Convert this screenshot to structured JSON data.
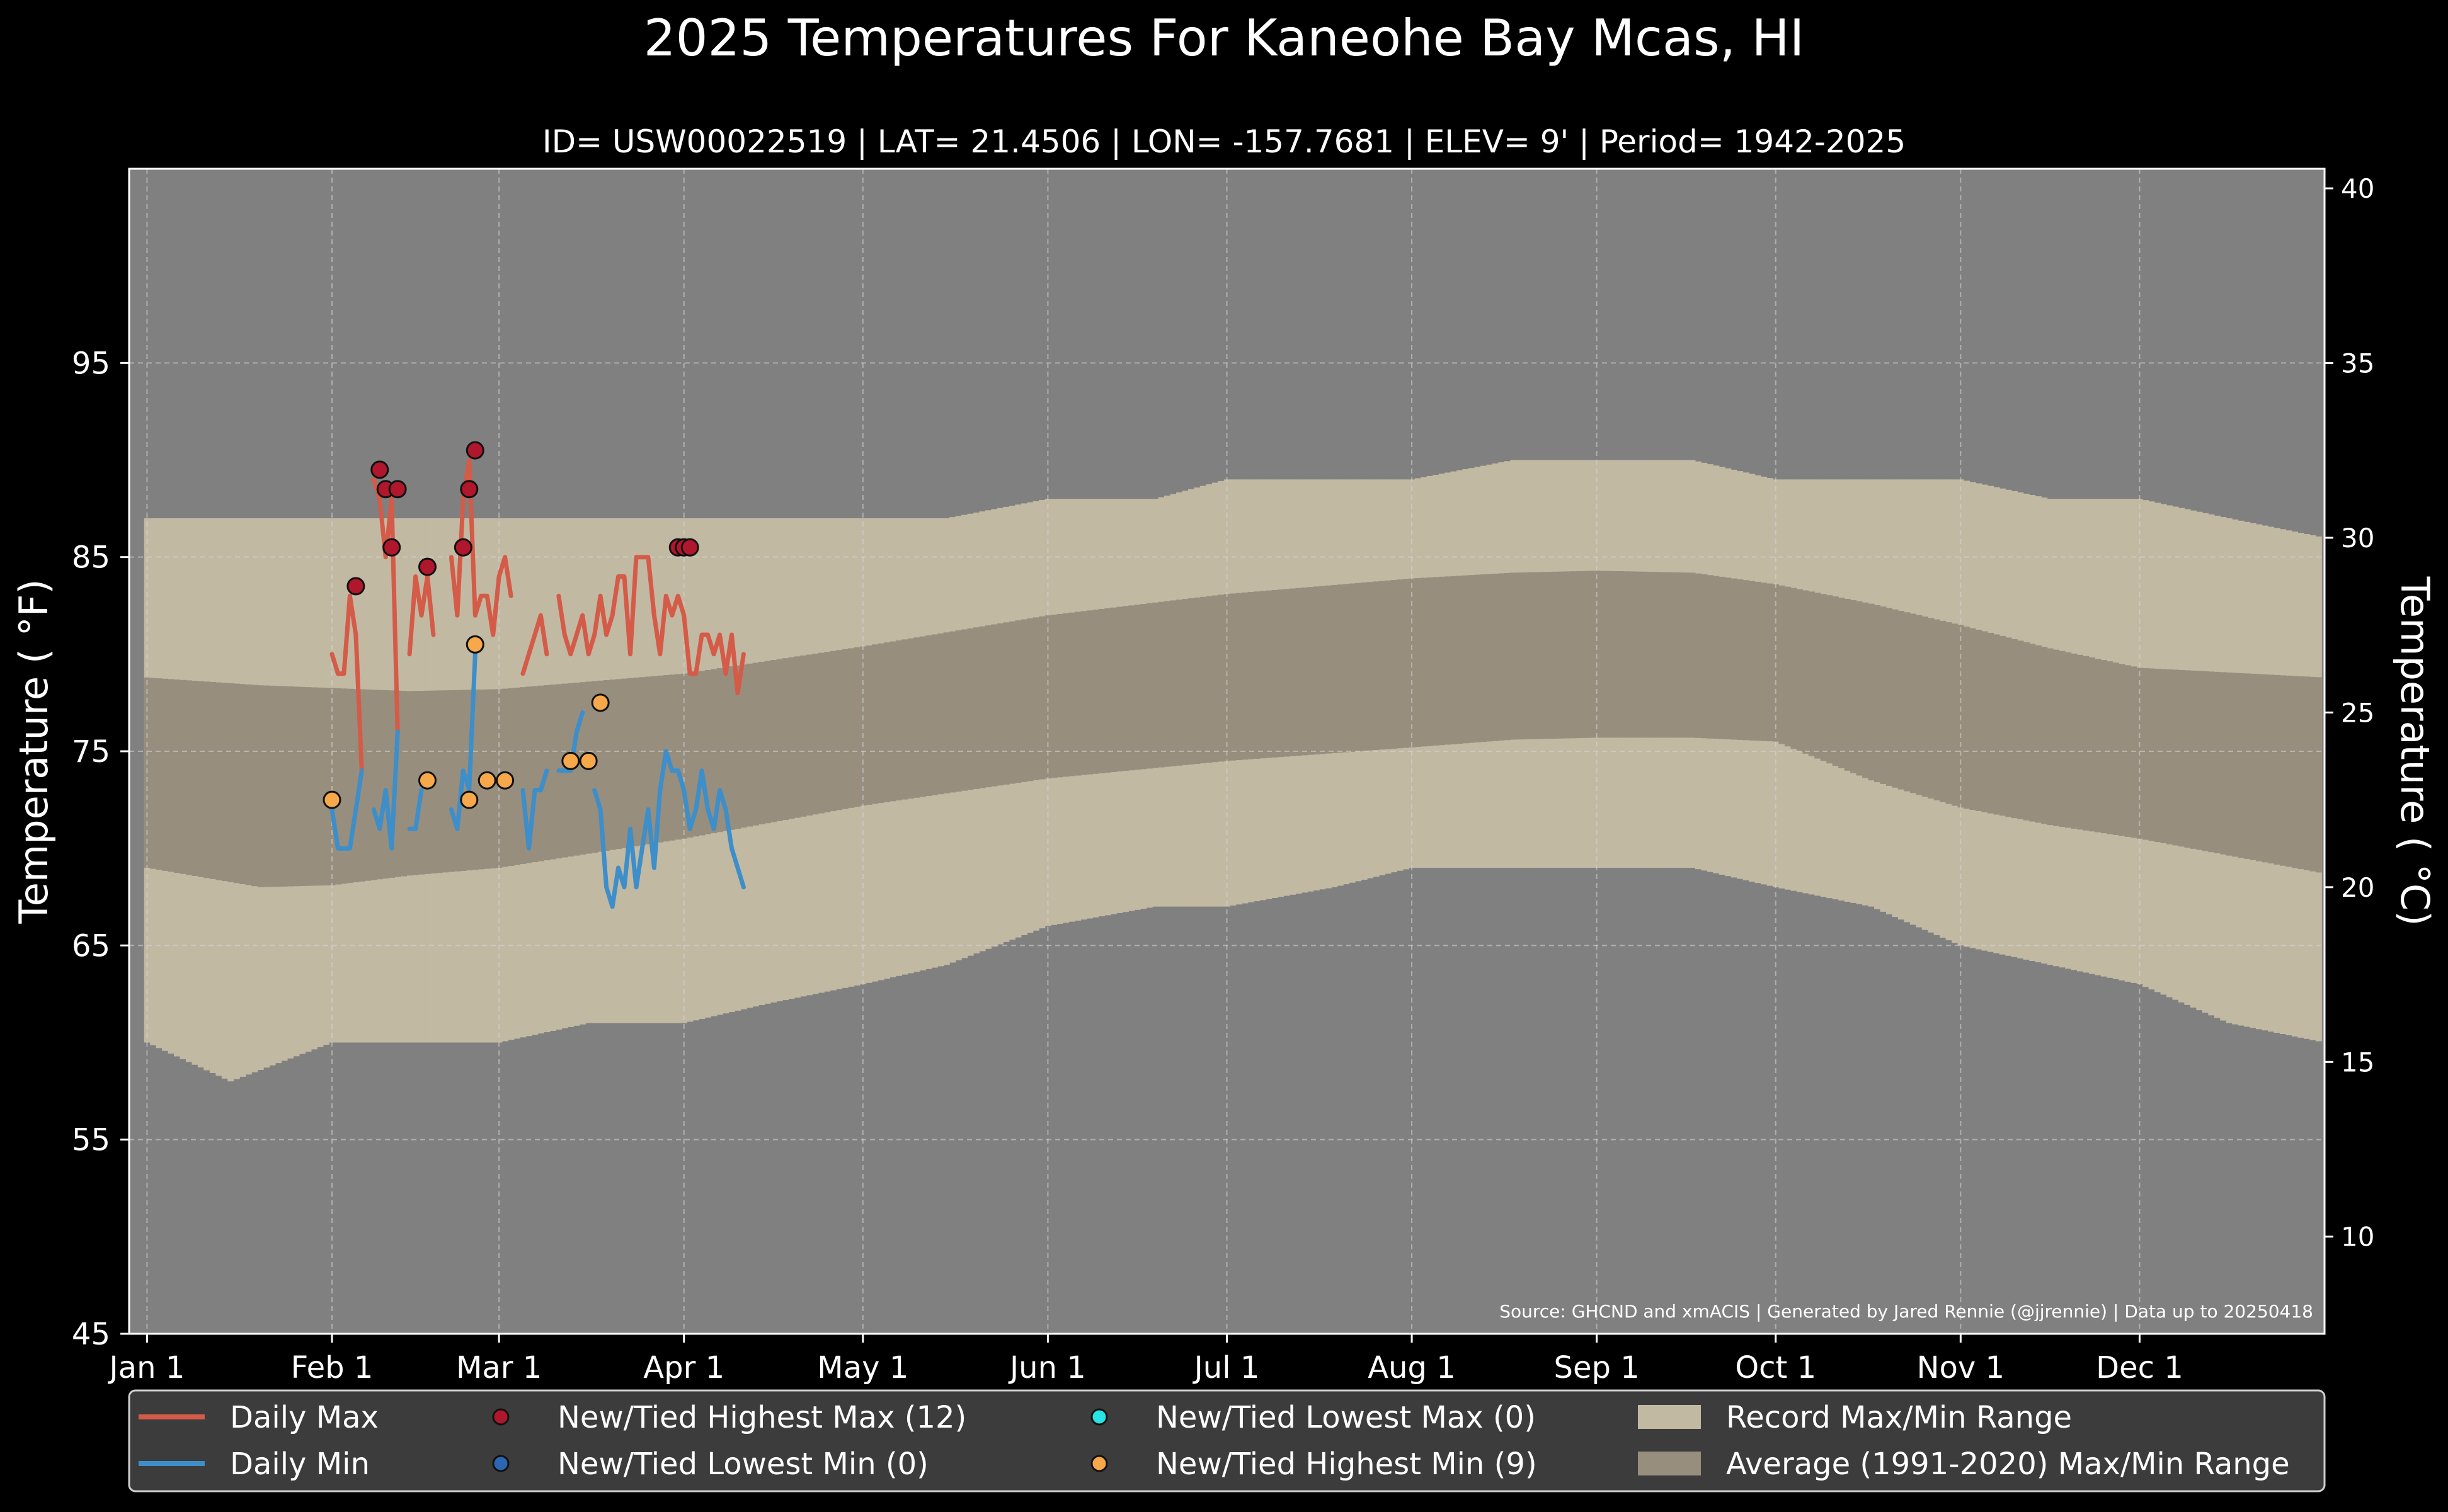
{
  "chart_data": {
    "type": "line",
    "title": "2025 Temperatures For Kaneohe Bay Mcas, HI",
    "subtitle": "ID= USW00022519 | LAT= 21.4506 | LON= -157.7681 | ELEV= 9' | Period= 1942-2025",
    "ylabel_left": "Temperature ($^\\circ$F)",
    "ylabel_right": "Temperature ($^\\circ$C)",
    "ylabel_left_display": "Temperature ( °F)",
    "ylabel_right_display": "Temperature ( °C)",
    "ylim_f": [
      45,
      105
    ],
    "ylim_c": [
      7.22,
      40.56
    ],
    "xlim_day": [
      -2,
      366
    ],
    "x_ticks": [
      {
        "label": "Jan 1",
        "day": 1
      },
      {
        "label": "Feb 1",
        "day": 32
      },
      {
        "label": "Mar 1",
        "day": 60
      },
      {
        "label": "Apr 1",
        "day": 91
      },
      {
        "label": "May 1",
        "day": 121
      },
      {
        "label": "Jun 1",
        "day": 152
      },
      {
        "label": "Jul 1",
        "day": 182
      },
      {
        "label": "Aug 1",
        "day": 213
      },
      {
        "label": "Sep 1",
        "day": 244
      },
      {
        "label": "Oct 1",
        "day": 274
      },
      {
        "label": "Nov 1",
        "day": 305
      },
      {
        "label": "Dec 1",
        "day": 335
      }
    ],
    "y_ticks_left": [
      45,
      55,
      65,
      75,
      85,
      95
    ],
    "y_ticks_right": [
      10,
      15,
      20,
      25,
      30,
      35,
      40
    ],
    "grid": true,
    "source_note": "Source: GHCND and xmACIS | Generated by Jared Rennie (@jjrennie) | Data up to 20250418",
    "colors": {
      "background": "#000000",
      "plot_background": "#808080",
      "record_range": "#c2b9a3",
      "average_range": "#978e7e",
      "daily_max": "#d45b48",
      "daily_min": "#3d8ec9",
      "highest_max_marker": "#b0172c",
      "lowest_min_marker": "#2b66b4",
      "lowest_max_marker": "#27e3e3",
      "highest_min_marker": "#f7a84a",
      "legend_background": "#3c3c3c"
    },
    "record_max_anchors": [
      [
        1,
        87
      ],
      [
        15,
        87
      ],
      [
        32,
        87
      ],
      [
        45,
        87
      ],
      [
        60,
        87
      ],
      [
        75,
        87
      ],
      [
        91,
        87
      ],
      [
        105,
        87
      ],
      [
        121,
        87
      ],
      [
        135,
        87
      ],
      [
        152,
        88
      ],
      [
        170,
        88
      ],
      [
        182,
        89
      ],
      [
        200,
        89
      ],
      [
        213,
        89
      ],
      [
        230,
        90
      ],
      [
        244,
        90
      ],
      [
        260,
        90
      ],
      [
        274,
        89
      ],
      [
        290,
        89
      ],
      [
        305,
        89
      ],
      [
        320,
        88
      ],
      [
        335,
        88
      ],
      [
        350,
        87
      ],
      [
        366,
        86
      ]
    ],
    "record_min_anchors": [
      [
        1,
        60
      ],
      [
        15,
        58
      ],
      [
        32,
        60
      ],
      [
        45,
        60
      ],
      [
        60,
        60
      ],
      [
        75,
        61
      ],
      [
        91,
        61
      ],
      [
        105,
        62
      ],
      [
        121,
        63
      ],
      [
        135,
        64
      ],
      [
        152,
        66
      ],
      [
        170,
        67
      ],
      [
        182,
        67
      ],
      [
        200,
        68
      ],
      [
        213,
        69
      ],
      [
        230,
        69
      ],
      [
        244,
        69
      ],
      [
        260,
        69
      ],
      [
        274,
        68
      ],
      [
        290,
        67
      ],
      [
        305,
        65
      ],
      [
        320,
        64
      ],
      [
        335,
        63
      ],
      [
        350,
        61
      ],
      [
        366,
        60
      ]
    ],
    "average_max_anchors": [
      [
        1,
        78.8
      ],
      [
        20,
        78.4
      ],
      [
        45,
        78.1
      ],
      [
        60,
        78.2
      ],
      [
        91,
        79.0
      ],
      [
        121,
        80.4
      ],
      [
        152,
        82.0
      ],
      [
        182,
        83.1
      ],
      [
        213,
        83.9
      ],
      [
        230,
        84.2
      ],
      [
        244,
        84.3
      ],
      [
        260,
        84.2
      ],
      [
        274,
        83.6
      ],
      [
        290,
        82.6
      ],
      [
        305,
        81.5
      ],
      [
        320,
        80.3
      ],
      [
        335,
        79.3
      ],
      [
        366,
        78.8
      ]
    ],
    "average_min_anchors": [
      [
        1,
        69.0
      ],
      [
        20,
        68.0
      ],
      [
        32,
        68.1
      ],
      [
        45,
        68.6
      ],
      [
        60,
        69.0
      ],
      [
        91,
        70.5
      ],
      [
        121,
        72.2
      ],
      [
        152,
        73.6
      ],
      [
        182,
        74.5
      ],
      [
        213,
        75.2
      ],
      [
        230,
        75.6
      ],
      [
        244,
        75.7
      ],
      [
        260,
        75.7
      ],
      [
        274,
        75.5
      ],
      [
        290,
        73.5
      ],
      [
        305,
        72.1
      ],
      [
        320,
        71.2
      ],
      [
        335,
        70.5
      ],
      [
        366,
        68.7
      ]
    ],
    "series": [
      {
        "name": "Daily Max",
        "color": "#d45b48",
        "points": [
          [
            32,
            80
          ],
          [
            33,
            79
          ],
          [
            34,
            79
          ],
          [
            35,
            83
          ],
          [
            36,
            81
          ],
          [
            37,
            74
          ],
          [
            38,
            null
          ],
          [
            39,
            89
          ],
          [
            40,
            88
          ],
          [
            41,
            85
          ],
          [
            42,
            88
          ],
          [
            43,
            76
          ],
          [
            44,
            null
          ],
          [
            45,
            80
          ],
          [
            46,
            84
          ],
          [
            47,
            82
          ],
          [
            48,
            84
          ],
          [
            49,
            81
          ],
          [
            50,
            null
          ],
          [
            51,
            null
          ],
          [
            52,
            85
          ],
          [
            53,
            82
          ],
          [
            54,
            88
          ],
          [
            55,
            90
          ],
          [
            56,
            82
          ],
          [
            57,
            83
          ],
          [
            58,
            83
          ],
          [
            59,
            81
          ],
          [
            60,
            84
          ],
          [
            61,
            85
          ],
          [
            62,
            83
          ],
          [
            63,
            null
          ],
          [
            64,
            79
          ],
          [
            65,
            80
          ],
          [
            66,
            81
          ],
          [
            67,
            82
          ],
          [
            68,
            80
          ],
          [
            69,
            null
          ],
          [
            70,
            83
          ],
          [
            71,
            81
          ],
          [
            72,
            80
          ],
          [
            73,
            81
          ],
          [
            74,
            82
          ],
          [
            75,
            80
          ],
          [
            76,
            81
          ],
          [
            77,
            83
          ],
          [
            78,
            81
          ],
          [
            79,
            82
          ],
          [
            80,
            84
          ],
          [
            81,
            84
          ],
          [
            82,
            80
          ],
          [
            83,
            85
          ],
          [
            84,
            85
          ],
          [
            85,
            85
          ],
          [
            86,
            82
          ],
          [
            87,
            80
          ],
          [
            88,
            83
          ],
          [
            89,
            82
          ],
          [
            90,
            83
          ],
          [
            91,
            82
          ],
          [
            92,
            79
          ],
          [
            93,
            79
          ],
          [
            94,
            81
          ],
          [
            95,
            81
          ],
          [
            96,
            80
          ],
          [
            97,
            81
          ],
          [
            98,
            79
          ],
          [
            99,
            81
          ],
          [
            100,
            78
          ],
          [
            101,
            80
          ]
        ]
      },
      {
        "name": "Daily Min",
        "color": "#3d8ec9",
        "points": [
          [
            32,
            72
          ],
          [
            33,
            70
          ],
          [
            34,
            70
          ],
          [
            35,
            70
          ],
          [
            36,
            72
          ],
          [
            37,
            74
          ],
          [
            38,
            null
          ],
          [
            39,
            72
          ],
          [
            40,
            71
          ],
          [
            41,
            73
          ],
          [
            42,
            70
          ],
          [
            43,
            76
          ],
          [
            44,
            null
          ],
          [
            45,
            71
          ],
          [
            46,
            71
          ],
          [
            47,
            73
          ],
          [
            48,
            null
          ],
          [
            49,
            null
          ],
          [
            50,
            null
          ],
          [
            51,
            null
          ],
          [
            52,
            72
          ],
          [
            53,
            71
          ],
          [
            54,
            74
          ],
          [
            55,
            73
          ],
          [
            56,
            80
          ],
          [
            57,
            null
          ],
          [
            58,
            null
          ],
          [
            59,
            null
          ],
          [
            60,
            null
          ],
          [
            61,
            null
          ],
          [
            62,
            null
          ],
          [
            63,
            null
          ],
          [
            64,
            73
          ],
          [
            65,
            70
          ],
          [
            66,
            73
          ],
          [
            67,
            73
          ],
          [
            68,
            74
          ],
          [
            69,
            null
          ],
          [
            70,
            74
          ],
          [
            71,
            74
          ],
          [
            72,
            74
          ],
          [
            73,
            76
          ],
          [
            74,
            77
          ],
          [
            75,
            null
          ],
          [
            76,
            73
          ],
          [
            77,
            72
          ],
          [
            78,
            68
          ],
          [
            79,
            67
          ],
          [
            80,
            69
          ],
          [
            81,
            68
          ],
          [
            82,
            71
          ],
          [
            83,
            68
          ],
          [
            84,
            70
          ],
          [
            85,
            72
          ],
          [
            86,
            69
          ],
          [
            87,
            73
          ],
          [
            88,
            75
          ],
          [
            89,
            74
          ],
          [
            90,
            74
          ],
          [
            91,
            73
          ],
          [
            92,
            71
          ],
          [
            93,
            72
          ],
          [
            94,
            74
          ],
          [
            95,
            72
          ],
          [
            96,
            71
          ],
          [
            97,
            73
          ],
          [
            98,
            72
          ],
          [
            99,
            70
          ],
          [
            100,
            69
          ],
          [
            101,
            68
          ]
        ]
      }
    ],
    "markers_highest_max": [
      [
        36,
        83.5
      ],
      [
        40,
        89.5
      ],
      [
        41,
        88.5
      ],
      [
        42,
        85.5
      ],
      [
        43,
        88.5
      ],
      [
        48,
        84.5
      ],
      [
        54,
        85.5
      ],
      [
        55,
        88.5
      ],
      [
        56,
        90.5
      ],
      [
        90,
        85.5
      ],
      [
        91,
        85.5
      ],
      [
        92,
        85.5
      ]
    ],
    "markers_highest_min": [
      [
        32,
        72.5
      ],
      [
        48,
        73.5
      ],
      [
        55,
        72.5
      ],
      [
        56,
        80.5
      ],
      [
        58,
        73.5
      ],
      [
        61,
        73.5
      ],
      [
        72,
        74.5
      ],
      [
        75,
        74.5
      ],
      [
        77,
        77.5
      ]
    ],
    "markers_lowest_max": [],
    "markers_lowest_min": [],
    "legend": [
      {
        "label": "Daily Max",
        "kind": "line",
        "color": "#d45b48"
      },
      {
        "label": "Daily Min",
        "kind": "line",
        "color": "#3d8ec9"
      },
      {
        "label": "New/Tied Highest Max (12)",
        "kind": "dot",
        "color": "#b0172c"
      },
      {
        "label": "New/Tied Lowest Min (0)",
        "kind": "dot",
        "color": "#2b66b4"
      },
      {
        "label": "New/Tied Lowest Max (0)",
        "kind": "dot",
        "color": "#27e3e3"
      },
      {
        "label": "New/Tied Highest Min (9)",
        "kind": "dot",
        "color": "#f7a84a"
      },
      {
        "label": "Record Max/Min Range",
        "kind": "patch",
        "color": "#c2b9a3"
      },
      {
        "label": "Average (1991-2020) Max/Min Range",
        "kind": "patch",
        "color": "#978e7e"
      }
    ],
    "legend_placement": "bottom"
  }
}
